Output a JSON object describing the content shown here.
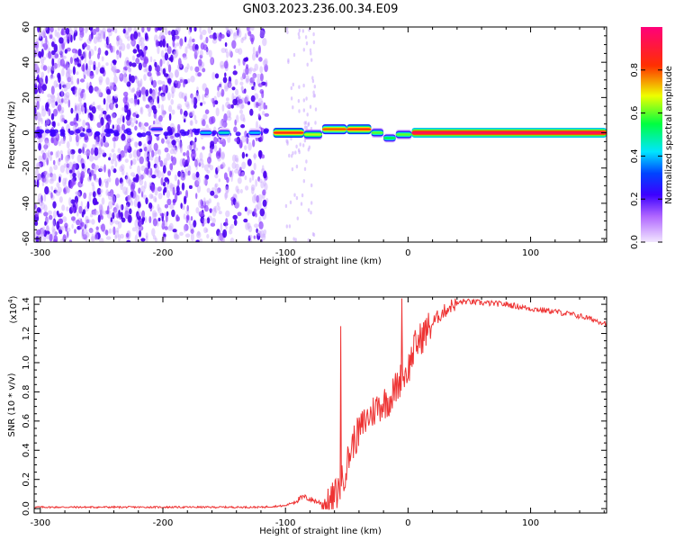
{
  "page": {
    "title": "GN03.2023.236.00.34.E09"
  },
  "chart_data": [
    {
      "type": "heatmap",
      "xlabel": "Height of straight line (km)",
      "ylabel": "Frequency (Hz)",
      "xlim": [
        -305,
        162
      ],
      "ylim": [
        -62,
        60
      ],
      "x_ticks": [
        -300,
        -200,
        -100,
        0,
        100
      ],
      "y_ticks": [
        60,
        40,
        20,
        0,
        -20,
        -40,
        -60
      ],
      "tick_labels_x": [
        "-300",
        "-200",
        "-100",
        "0",
        "100"
      ],
      "tick_labels_y": [
        "60",
        "40",
        "20",
        "0",
        "-20",
        "-40",
        "-60"
      ],
      "colorbar": {
        "label": "Normalized spectral amplitude",
        "range": [
          0,
          1
        ],
        "ticks": [
          0.0,
          0.2,
          0.4,
          0.6,
          0.8
        ],
        "tick_labels": [
          "0.0",
          "0.2",
          "0.4",
          "0.6",
          "0.8"
        ],
        "colors": [
          "#f2e6ff",
          "#b066ff",
          "#3c00ff",
          "#0044ff",
          "#00e5ff",
          "#00ff40",
          "#eeff00",
          "#ff3000",
          "#ff007a"
        ]
      },
      "noise_region": [
        -305,
        -115
      ],
      "sparse_region": [
        -100,
        -75
      ],
      "tone_segments": [
        {
          "x_start": -210,
          "x_end": -200,
          "freq": 2,
          "amplitude": 0.28
        },
        {
          "x_start": -170,
          "x_end": -160,
          "freq": 0,
          "amplitude": 0.4
        },
        {
          "x_start": -155,
          "x_end": -145,
          "freq": 0,
          "amplitude": 0.45
        },
        {
          "x_start": -130,
          "x_end": -120,
          "freq": 0,
          "amplitude": 0.4
        },
        {
          "x_start": -110,
          "x_end": -85,
          "freq": 0,
          "amplitude": 0.85
        },
        {
          "x_start": -85,
          "x_end": -70,
          "freq": -1,
          "amplitude": 0.65
        },
        {
          "x_start": -70,
          "x_end": -50,
          "freq": 2,
          "amplitude": 0.8
        },
        {
          "x_start": -50,
          "x_end": -30,
          "freq": 2,
          "amplitude": 0.85
        },
        {
          "x_start": -30,
          "x_end": -20,
          "freq": 0,
          "amplitude": 0.6
        },
        {
          "x_start": -20,
          "x_end": -10,
          "freq": -3,
          "amplitude": 0.55
        },
        {
          "x_start": -10,
          "x_end": 3,
          "freq": -1,
          "amplitude": 0.6
        },
        {
          "x_start": 3,
          "x_end": 162,
          "freq": 0,
          "amplitude": 0.95
        }
      ],
      "colors": {
        "noise": "#5a00ff"
      }
    },
    {
      "type": "line",
      "xlabel": "Height of straight line (km)",
      "ylabel": "SNR (10 * v/v)",
      "y_multiplier": "(x10^4)",
      "y_multiplier_base": "(x10",
      "y_multiplier_exp": "4",
      "y_multiplier_close": ")",
      "xlim": [
        -305,
        162
      ],
      "ylim": [
        -0.03,
        1.45
      ],
      "x_ticks": [
        -300,
        -200,
        -100,
        0,
        100
      ],
      "y_ticks": [
        0.0,
        0.2,
        0.4,
        0.6,
        0.8,
        1.0,
        1.2,
        1.4
      ],
      "tick_labels_x": [
        "-300",
        "-200",
        "-100",
        "0",
        "100"
      ],
      "tick_labels_y": [
        "0.0",
        "0.2",
        "0.4",
        "0.6",
        "0.8",
        "1.0",
        "1.2",
        "1.4"
      ],
      "color": "#ee3333",
      "x": [
        -305,
        -200,
        -120,
        -100,
        -85,
        -75,
        -65,
        -55,
        -45,
        -35,
        -25,
        -15,
        -5,
        0,
        5,
        15,
        25,
        35,
        45,
        60,
        80,
        100,
        120,
        140,
        162
      ],
      "y": [
        0.01,
        0.01,
        0.01,
        0.02,
        0.08,
        0.05,
        0.02,
        0.15,
        0.45,
        0.6,
        0.7,
        0.75,
        0.9,
        0.95,
        1.1,
        1.22,
        1.32,
        1.39,
        1.42,
        1.41,
        1.4,
        1.37,
        1.35,
        1.32,
        1.27
      ],
      "spikes": [
        {
          "x": -55,
          "y": 1.25
        },
        {
          "x": -5,
          "y": 1.44
        }
      ]
    }
  ]
}
